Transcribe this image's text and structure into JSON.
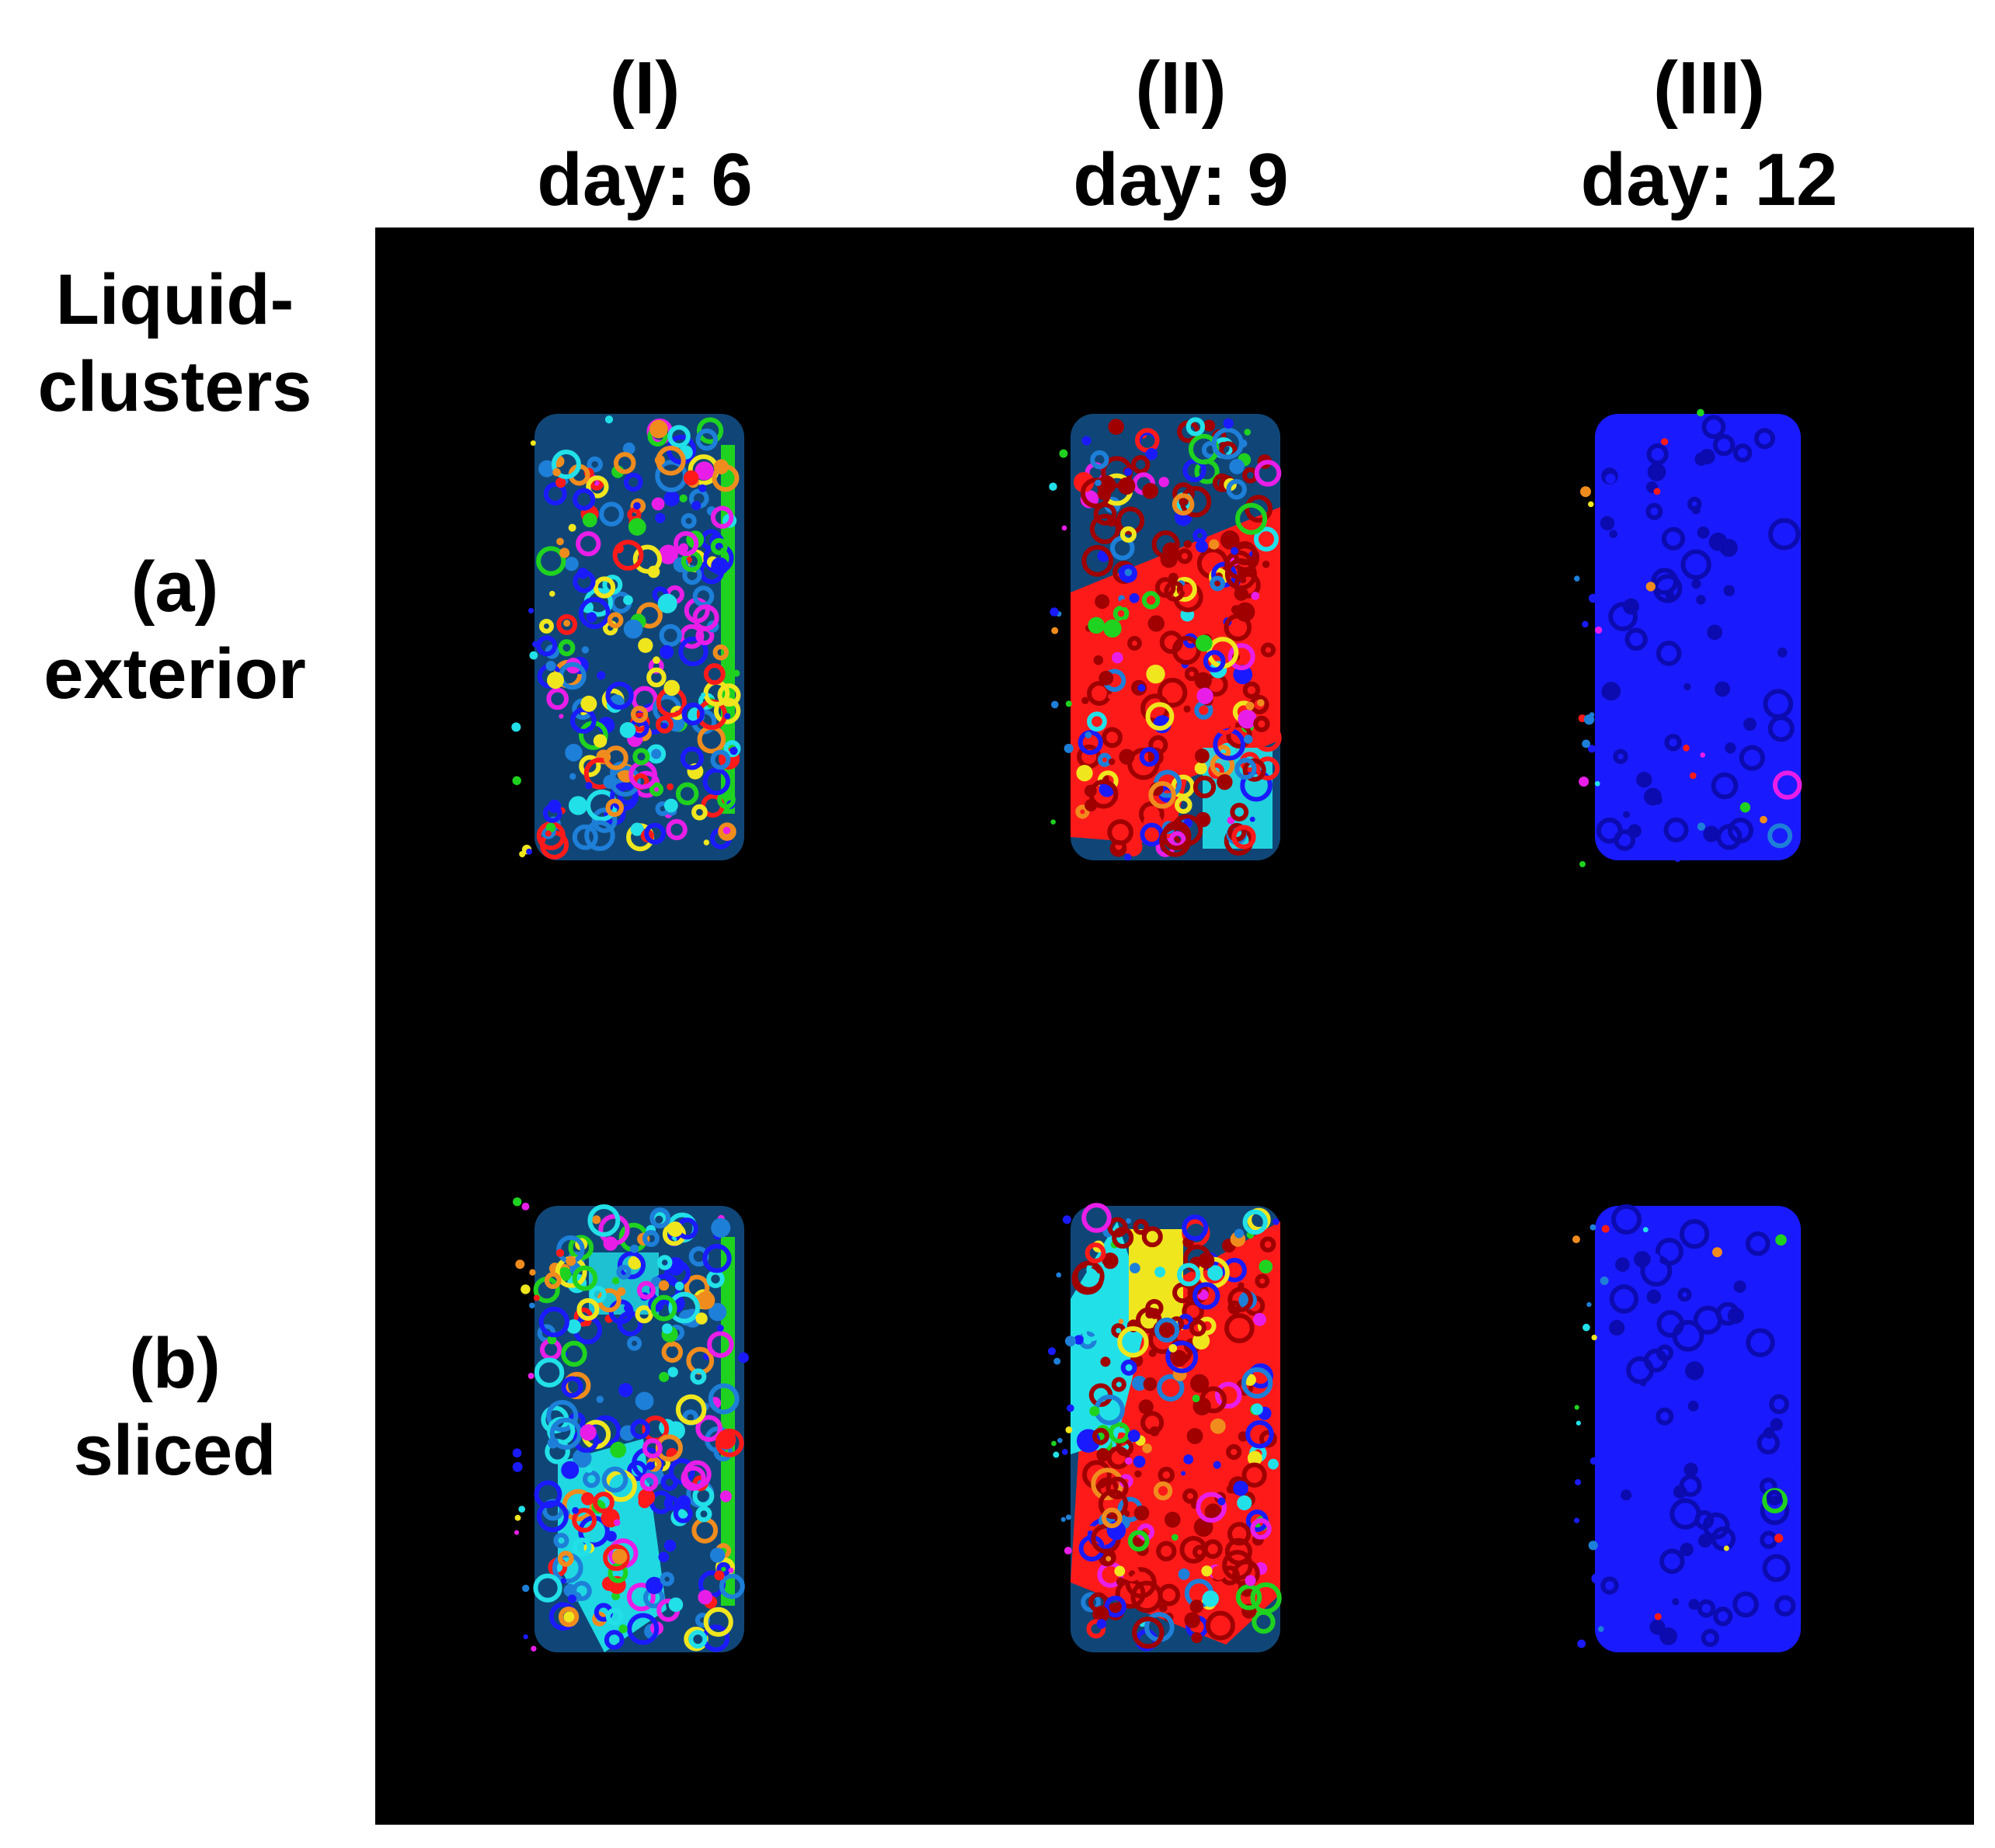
{
  "columns": [
    {
      "roman": "(I)",
      "day": "day: 6"
    },
    {
      "roman": "(II)",
      "day": "day: 9"
    },
    {
      "roman": "(III)",
      "day": "day: 12"
    }
  ],
  "header_label": {
    "line1": "Liquid-",
    "line2": "clusters"
  },
  "rows": [
    {
      "letter": "(a)",
      "name": "exterior"
    },
    {
      "letter": "(b)",
      "name": "sliced"
    }
  ],
  "palette": {
    "background": "#000000",
    "blue": "#1a1aff",
    "red": "#ff1a1a",
    "cyan": "#22e0e8",
    "steel": "#1e7fd8",
    "green": "#1fd21f",
    "yellow": "#f0e61e",
    "orange": "#f08c1e",
    "magenta": "#e81ee8"
  }
}
